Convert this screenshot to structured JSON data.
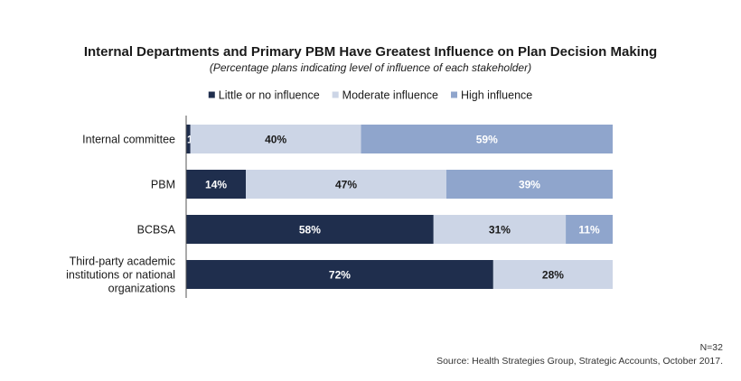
{
  "chart_data": {
    "type": "bar",
    "orientation": "horizontal",
    "stacked": true,
    "title": "Internal Departments and Primary PBM Have Greatest Influence on Plan Decision Making",
    "subtitle": "(Percentage plans indicating level of influence of each stakeholder)",
    "categories": [
      [
        "Internal committee"
      ],
      [
        "PBM"
      ],
      [
        "BCBSA"
      ],
      [
        "Third-party academic",
        "institutions or national",
        "organizations"
      ]
    ],
    "series": [
      {
        "name": "Little or no influence",
        "color": "#1f2e4d",
        "label_color": "#ffffff",
        "values": [
          1,
          14,
          58,
          72
        ],
        "labels": [
          "1%",
          "14%",
          "58%",
          "72%"
        ]
      },
      {
        "name": "Moderate influence",
        "color": "#ccd5e6",
        "label_color": "#1a1a1a",
        "values": [
          40,
          47,
          31,
          28
        ],
        "labels": [
          "40%",
          "47%",
          "31%",
          "28%"
        ]
      },
      {
        "name": "High influence",
        "color": "#8fa5cc",
        "label_color": "#ffffff",
        "values": [
          59,
          39,
          11,
          0
        ],
        "labels": [
          "59%",
          "39%",
          "11%",
          ""
        ]
      }
    ],
    "xlim": [
      0,
      100
    ],
    "legend_position": "top-center",
    "grid": false
  },
  "footnote": {
    "n": "N=32",
    "source": "Source: Health  Strategies Group, Strategic Accounts, October 2017."
  }
}
